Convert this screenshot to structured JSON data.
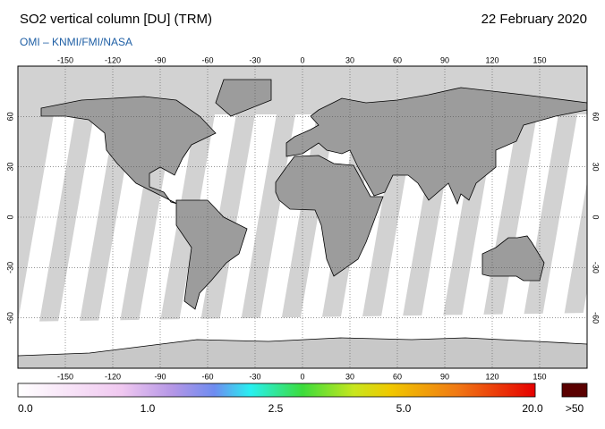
{
  "chart_data": {
    "type": "map",
    "title": "SO2 vertical column [DU] (TRM)",
    "subtitle": "OMI  –  KNMI/FMI/NASA",
    "date": "22 February 2020",
    "xlim": [
      -180,
      180
    ],
    "ylim": [
      -90,
      90
    ],
    "xticks": [
      -150,
      -120,
      -90,
      -60,
      -30,
      0,
      30,
      60,
      90,
      120,
      150
    ],
    "yticks": [
      -60,
      -30,
      0,
      30,
      60
    ],
    "grid": true,
    "colorbar": {
      "labels": [
        "0.0",
        "1.0",
        "2.5",
        "5.0",
        "20.0",
        ">50"
      ]
    }
  }
}
